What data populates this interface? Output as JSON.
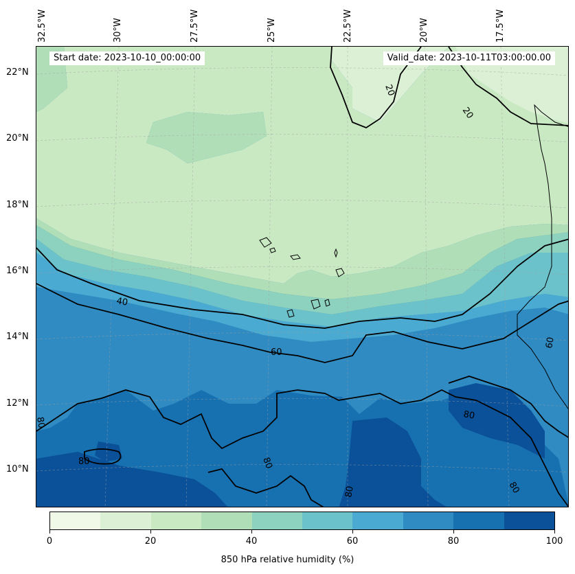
{
  "header": {
    "start_date_label": "Start date: 2023-10-10_00:00:00",
    "valid_date_label": "Valid_date: 2023-10-11T03:00:00.00"
  },
  "map": {
    "longitude_labels": [
      "32.5°W",
      "30°W",
      "27.5°W",
      "25°W",
      "22.5°W",
      "20°W",
      "17.5°W"
    ],
    "latitude_labels": [
      "22°N",
      "20°N",
      "18°N",
      "16°N",
      "14°N",
      "12°N",
      "10°N"
    ],
    "contour_labels": [
      "20",
      "20",
      "40",
      "60",
      "60",
      "80",
      "80",
      "80",
      "80",
      "80",
      "80"
    ],
    "fill_levels": [
      0,
      10,
      20,
      30,
      40,
      50,
      60,
      70,
      80,
      90,
      100
    ],
    "fill_colors": [
      "#f0f9e8",
      "#dcf0d6",
      "#c9e9c3",
      "#b0dfb7",
      "#8dd1bf",
      "#6bc2cb",
      "#4aaad2",
      "#2f8bc2",
      "#1771b1",
      "#0a5199"
    ]
  },
  "colorbar": {
    "tick_labels": [
      "0",
      "20",
      "40",
      "60",
      "80",
      "100"
    ],
    "title": "850 hPa relative humidity (%)"
  }
}
